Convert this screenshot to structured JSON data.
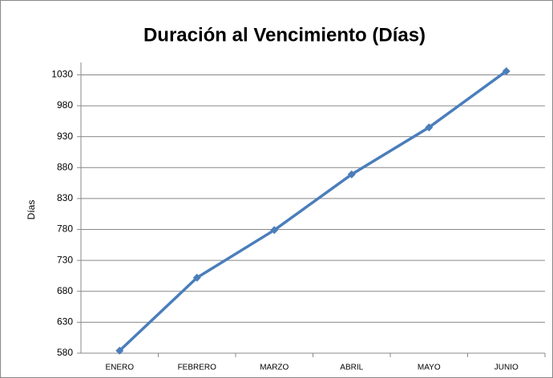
{
  "chart_data": {
    "type": "line",
    "title": "Duración al Vencimiento (Días)",
    "y_label": "Días",
    "categories": [
      "ENERO",
      "FEBRERO",
      "MARZO",
      "ABRIL",
      "MAYO",
      "JUNIO"
    ],
    "series": [
      {
        "name": "Días",
        "color": "#4a7ebb",
        "values": [
          584,
          702,
          779,
          869,
          945,
          1036
        ]
      }
    ],
    "ylim": [
      580,
      1050
    ],
    "yticks": [
      580,
      630,
      680,
      730,
      780,
      830,
      880,
      930,
      980,
      1030
    ],
    "grid": true
  }
}
